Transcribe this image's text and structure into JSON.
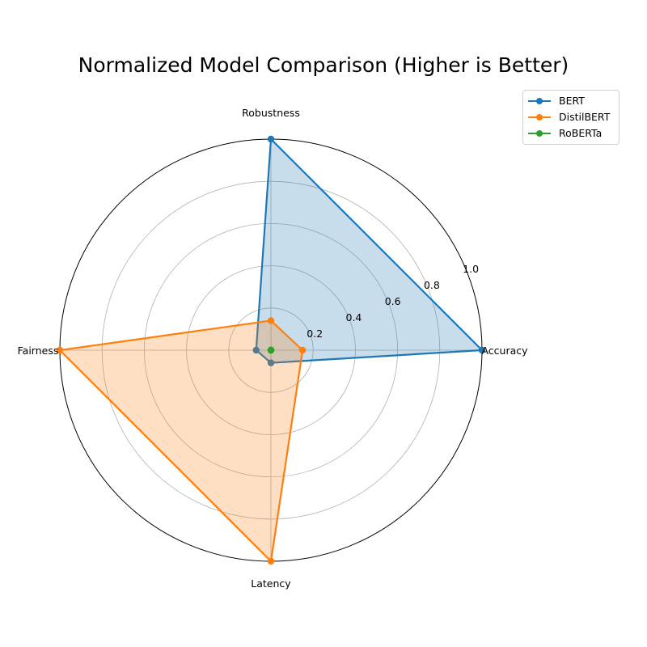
{
  "chart_data": {
    "type": "radar",
    "title": "Normalized Model Comparison (Higher is Better)",
    "axes": [
      "Accuracy",
      "Robustness",
      "Fairness",
      "Latency"
    ],
    "rlim": [
      0,
      1.0
    ],
    "r_ticks": [
      "0.2",
      "0.4",
      "0.6",
      "0.8",
      "1.0"
    ],
    "r_tick_values": [
      0.2,
      0.4,
      0.6,
      0.8,
      1.0
    ],
    "grid": true,
    "legend_position": "top-right",
    "series": [
      {
        "name": "BERT",
        "values": [
          1.0,
          1.0,
          0.07,
          0.06
        ],
        "color": "#1f77b4",
        "filled": true
      },
      {
        "name": "DistilBERT",
        "values": [
          0.15,
          0.14,
          1.0,
          1.0
        ],
        "color": "#ff7f0e",
        "filled": true
      },
      {
        "name": "RoBERTa",
        "values": [
          0.0,
          0.0,
          0.0,
          0.0
        ],
        "color": "#2ca02c",
        "filled": true
      }
    ]
  }
}
